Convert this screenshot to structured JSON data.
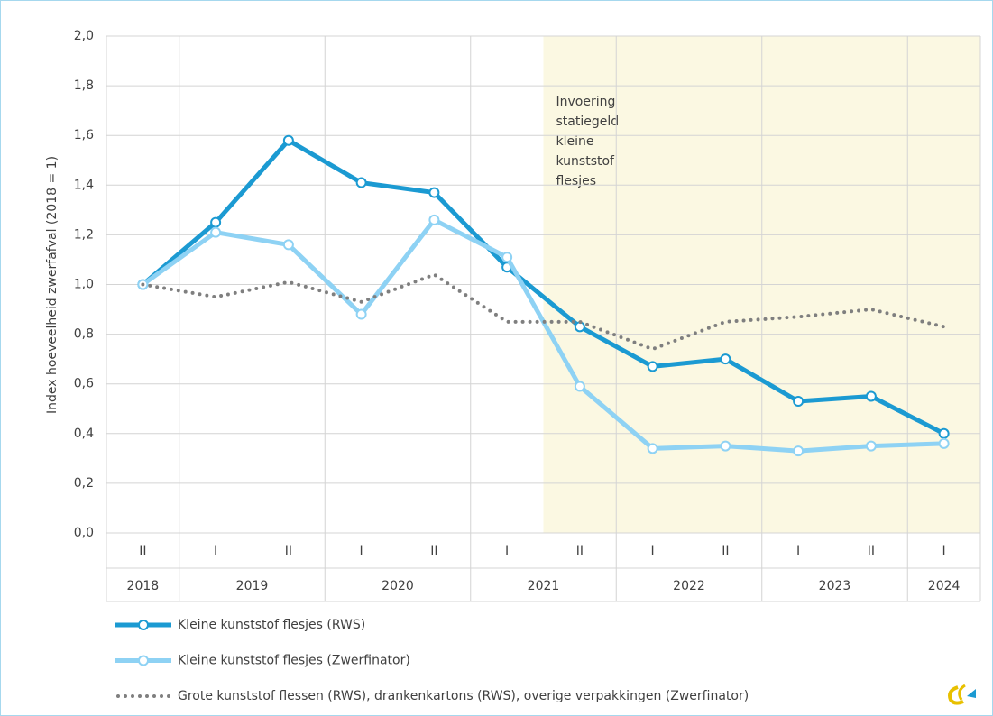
{
  "chart_data": {
    "type": "line",
    "ylabel": "Index hoeveelheid zwerfafval (2018 = 1)",
    "categories": [
      {
        "half": "II",
        "year": "2018"
      },
      {
        "half": "I",
        "year": "2019"
      },
      {
        "half": "II",
        "year": "2019"
      },
      {
        "half": "I",
        "year": "2020"
      },
      {
        "half": "II",
        "year": "2020"
      },
      {
        "half": "I",
        "year": "2021"
      },
      {
        "half": "II",
        "year": "2021"
      },
      {
        "half": "I",
        "year": "2022"
      },
      {
        "half": "II",
        "year": "2022"
      },
      {
        "half": "I",
        "year": "2023"
      },
      {
        "half": "II",
        "year": "2023"
      },
      {
        "half": "I",
        "year": "2024"
      }
    ],
    "series": [
      {
        "name": "Kleine kunststof flesjes (RWS)",
        "color": "#1b9ad2",
        "style": "solid-markers",
        "width": 5,
        "values": [
          1.0,
          1.25,
          1.58,
          1.41,
          1.37,
          1.07,
          0.83,
          0.67,
          0.7,
          0.53,
          0.55,
          0.4
        ]
      },
      {
        "name": "Kleine kunststof flesjes (Zwerfinator)",
        "color": "#8ed2f4",
        "style": "solid-markers",
        "width": 5,
        "values": [
          1.0,
          1.21,
          1.16,
          0.88,
          1.26,
          1.11,
          0.59,
          0.34,
          0.35,
          0.33,
          0.35,
          0.36
        ]
      },
      {
        "name": "Grote kunststof flessen (RWS), drankenkartons (RWS), overige verpakkingen (Zwerfinator)",
        "color": "#7f7f7f",
        "style": "dotted",
        "width": 4,
        "values": [
          1.0,
          0.95,
          1.01,
          0.93,
          1.04,
          0.85,
          0.85,
          0.74,
          0.85,
          0.87,
          0.9,
          0.83
        ]
      }
    ],
    "ylim": [
      0,
      2
    ],
    "yticks": [
      {
        "value": 0,
        "label": "0,0"
      },
      {
        "value": 0.2,
        "label": "0,2"
      },
      {
        "value": 0.4,
        "label": "0,4"
      },
      {
        "value": 0.6,
        "label": "0,6"
      },
      {
        "value": 0.8,
        "label": "0,8"
      },
      {
        "value": 1.0,
        "label": "1,0"
      },
      {
        "value": 1.2,
        "label": "1,2"
      },
      {
        "value": 1.4,
        "label": "1,4"
      },
      {
        "value": 1.6,
        "label": "1,6"
      },
      {
        "value": 1.8,
        "label": "1,8"
      },
      {
        "value": 2.0,
        "label": "2,0"
      }
    ],
    "grid": true,
    "highlight": {
      "after_index": 5,
      "color": "#fbf8e2",
      "label_lines": [
        "Invoering",
        "statiegeld",
        "kleine",
        "kunststof",
        "flesjes"
      ]
    }
  }
}
